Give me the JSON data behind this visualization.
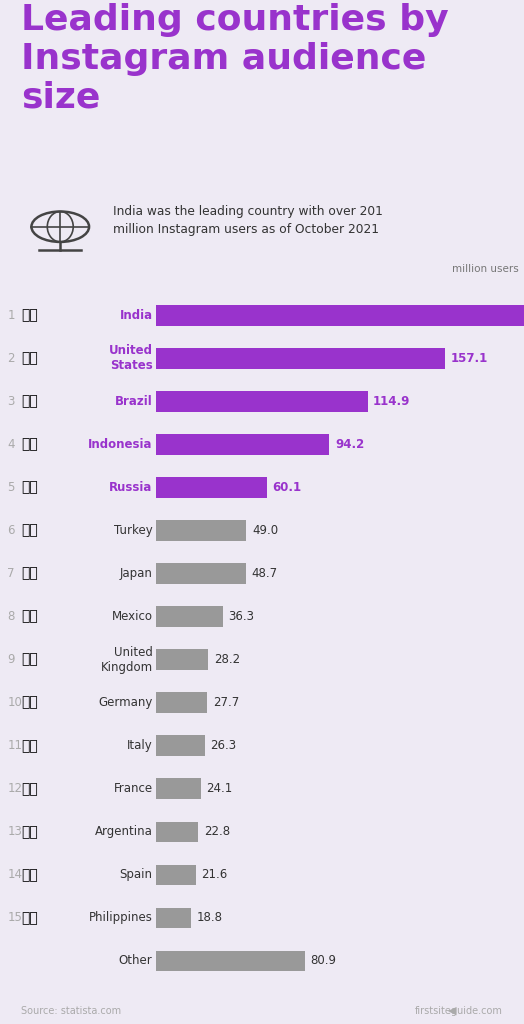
{
  "title": "Leading countries by\nInstagram audience\nsize",
  "subtitle": "India was the leading country with over 201\nmillion Instagram users as of October 2021",
  "source": "Source: statista.com",
  "watermark": "firstsiteguide.com",
  "axis_label": "million users",
  "background_color": "#eeeaf4",
  "bar_color_purple": "#9933cc",
  "bar_color_gray": "#999999",
  "title_color": "#9933cc",
  "purple_label_color": "#9933cc",
  "gray_label_color": "#333333",
  "rank_color": "#aaaaaa",
  "countries": [
    "India",
    "United\nStates",
    "Brazil",
    "Indonesia",
    "Russia",
    "Turkey",
    "Japan",
    "Mexico",
    "United\nKingdom",
    "Germany",
    "Italy",
    "France",
    "Argentina",
    "Spain",
    "Philippines",
    "Other"
  ],
  "values": [
    201.1,
    157.1,
    114.9,
    94.2,
    60.1,
    49.0,
    48.7,
    36.3,
    28.2,
    27.7,
    26.3,
    24.1,
    22.8,
    21.6,
    18.8,
    80.9
  ],
  "ranks": [
    "1",
    "2",
    "3",
    "4",
    "5",
    "6",
    "7",
    "8",
    "9",
    "10",
    "11",
    "12",
    "13",
    "14",
    "15",
    ""
  ],
  "purple_count": 5,
  "xlim": [
    0,
    230
  ]
}
